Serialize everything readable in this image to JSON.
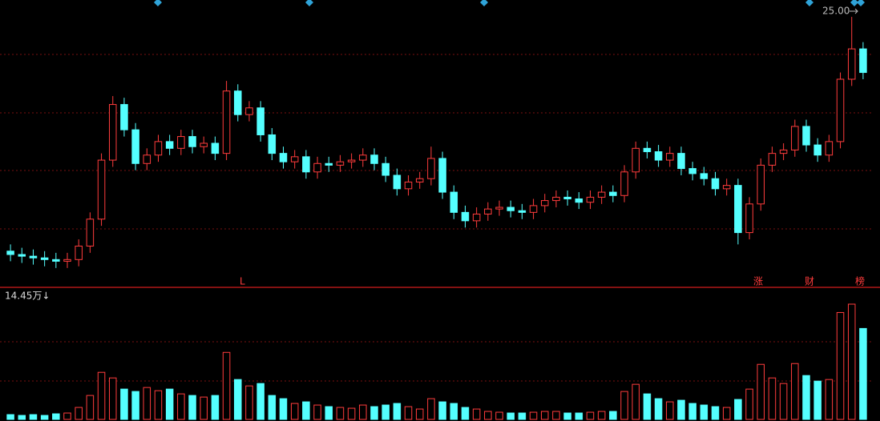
{
  "chart_data": {
    "type": "candlestick",
    "high_label": "25.00",
    "volume_label": "14.45万↓",
    "markers": [
      "L",
      "涨",
      "财",
      "榜"
    ],
    "up_color": "#ff3c3c",
    "down_color": "#54ffff",
    "ylim": [
      9,
      26
    ],
    "volume_ylim": [
      0,
      14.45
    ],
    "open": [
      11.1,
      10.9,
      10.8,
      10.7,
      10.6,
      10.5,
      10.6,
      11.4,
      13.0,
      16.5,
      19.8,
      18.3,
      16.3,
      16.8,
      17.6,
      17.2,
      17.9,
      17.3,
      17.5,
      16.9,
      20.6,
      19.2,
      19.6,
      18.0,
      16.9,
      16.4,
      16.7,
      15.8,
      16.3,
      16.2,
      16.4,
      16.5,
      16.8,
      16.3,
      15.6,
      14.8,
      15.2,
      15.4,
      16.6,
      14.6,
      13.4,
      12.9,
      13.3,
      13.6,
      13.7,
      13.5,
      13.4,
      13.8,
      14.1,
      14.3,
      14.2,
      14.0,
      14.3,
      14.6,
      14.4,
      15.8,
      17.2,
      17.0,
      16.5,
      16.9,
      16.0,
      15.7,
      15.4,
      14.8,
      15.0,
      12.2,
      13.9,
      16.2,
      16.9,
      17.1,
      18.5,
      17.4,
      16.8,
      17.6,
      21.3,
      23.1
    ],
    "high": [
      11.5,
      11.3,
      11.2,
      11.1,
      11.0,
      11.0,
      11.8,
      13.4,
      16.9,
      20.3,
      20.2,
      18.7,
      17.2,
      18.0,
      18.0,
      18.3,
      18.3,
      17.9,
      17.9,
      21.2,
      21.0,
      20.0,
      20.0,
      18.4,
      17.3,
      17.1,
      17.1,
      16.7,
      16.7,
      16.8,
      16.9,
      17.2,
      17.2,
      16.7,
      16.0,
      15.6,
      15.8,
      17.3,
      17.0,
      15.0,
      13.8,
      13.7,
      14.0,
      14.1,
      14.1,
      13.9,
      14.2,
      14.5,
      14.7,
      14.7,
      14.6,
      14.7,
      15.0,
      15.0,
      16.2,
      17.6,
      17.6,
      17.4,
      17.3,
      17.3,
      16.4,
      16.1,
      15.8,
      15.4,
      15.4,
      14.3,
      16.6,
      17.3,
      17.5,
      18.9,
      18.9,
      17.8,
      18.0,
      21.7,
      25.0,
      23.5
    ],
    "low": [
      10.5,
      10.4,
      10.3,
      10.2,
      10.1,
      10.1,
      10.2,
      11.0,
      12.6,
      16.1,
      17.9,
      15.9,
      15.9,
      16.4,
      16.8,
      16.8,
      16.9,
      16.9,
      16.5,
      16.5,
      18.8,
      18.8,
      17.6,
      16.5,
      16.0,
      16.0,
      15.4,
      15.4,
      15.8,
      15.8,
      16.0,
      16.1,
      15.9,
      15.2,
      14.4,
      14.4,
      14.8,
      15.0,
      14.2,
      13.0,
      12.5,
      12.5,
      12.9,
      13.2,
      13.1,
      13.0,
      13.0,
      13.4,
      13.7,
      13.8,
      13.6,
      13.6,
      13.9,
      14.0,
      14.0,
      15.4,
      16.6,
      16.1,
      16.1,
      15.6,
      15.3,
      15.0,
      14.4,
      14.4,
      11.5,
      11.8,
      13.5,
      15.8,
      16.5,
      16.7,
      17.0,
      16.4,
      16.4,
      17.2,
      20.9,
      21.3
    ],
    "close": [
      10.9,
      10.8,
      10.7,
      10.6,
      10.5,
      10.6,
      11.4,
      13.0,
      16.5,
      19.8,
      18.3,
      16.3,
      16.8,
      17.6,
      17.2,
      17.9,
      17.3,
      17.5,
      16.9,
      20.6,
      19.2,
      19.6,
      18.0,
      16.9,
      16.4,
      16.7,
      15.8,
      16.3,
      16.2,
      16.4,
      16.5,
      16.8,
      16.3,
      15.6,
      14.8,
      15.2,
      15.4,
      16.6,
      14.6,
      13.4,
      12.9,
      13.3,
      13.6,
      13.7,
      13.5,
      13.4,
      13.8,
      14.1,
      14.3,
      14.2,
      14.0,
      14.3,
      14.6,
      14.4,
      15.8,
      17.2,
      17.0,
      16.5,
      16.9,
      16.0,
      15.7,
      15.4,
      14.8,
      15.0,
      12.2,
      13.9,
      16.2,
      16.9,
      17.1,
      18.5,
      17.4,
      16.8,
      17.6,
      21.3,
      23.1,
      21.7
    ],
    "volume": [
      0.6,
      0.5,
      0.6,
      0.5,
      0.7,
      0.8,
      1.5,
      3.0,
      5.9,
      5.2,
      3.8,
      3.5,
      4.0,
      3.6,
      3.8,
      3.2,
      3.0,
      2.8,
      3.0,
      8.4,
      5.0,
      4.2,
      4.5,
      3.0,
      2.6,
      2.0,
      2.2,
      1.8,
      1.6,
      1.5,
      1.4,
      1.8,
      1.6,
      1.8,
      2.0,
      1.6,
      1.3,
      2.6,
      2.2,
      2.0,
      1.5,
      1.3,
      1.0,
      0.9,
      0.8,
      0.8,
      0.9,
      1.0,
      1.0,
      0.8,
      0.8,
      0.9,
      1.0,
      1.0,
      3.5,
      4.4,
      3.2,
      2.6,
      2.2,
      2.4,
      2.0,
      1.8,
      1.6,
      1.5,
      2.5,
      3.8,
      6.9,
      5.2,
      4.5,
      7.0,
      5.5,
      4.8,
      5.0,
      13.4,
      14.45,
      11.4
    ]
  }
}
